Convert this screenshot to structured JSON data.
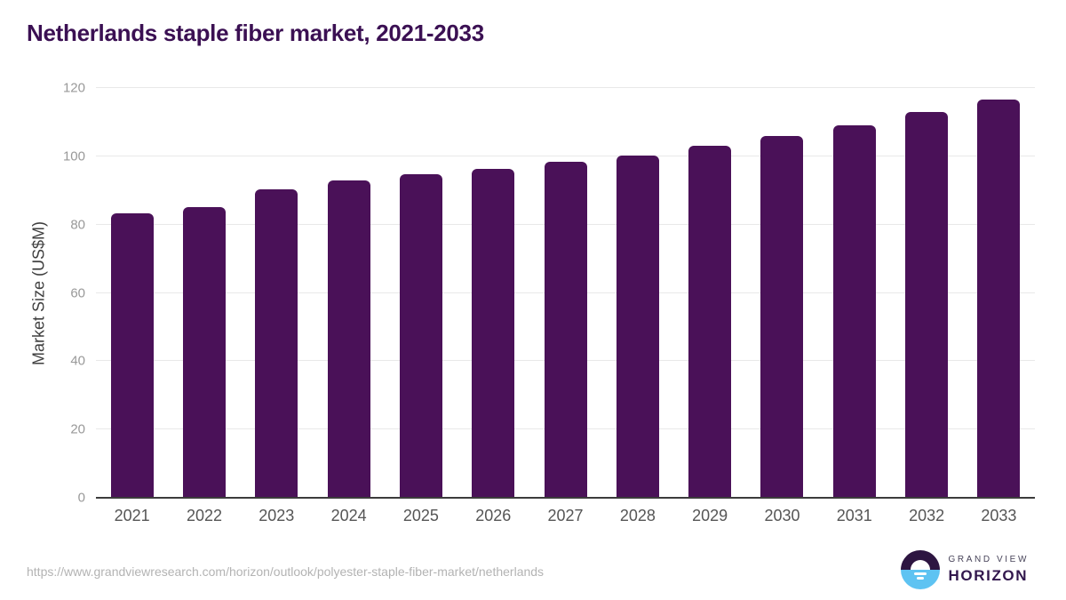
{
  "title": "Netherlands staple fiber market, 2021-2033",
  "chart_data": {
    "type": "bar",
    "categories": [
      "2021",
      "2022",
      "2023",
      "2024",
      "2025",
      "2026",
      "2027",
      "2028",
      "2029",
      "2030",
      "2031",
      "2032",
      "2033"
    ],
    "values": [
      83.2,
      85.1,
      90.2,
      93.0,
      94.8,
      96.4,
      98.3,
      100.3,
      103.0,
      105.9,
      109.1,
      113.1,
      116.5
    ],
    "title": "Netherlands staple fiber market, 2021-2033",
    "xlabel": "",
    "ylabel": "Market Size (US$M)",
    "ylim": [
      0,
      120
    ],
    "yticks": [
      0,
      20,
      40,
      60,
      80,
      100,
      120
    ],
    "grid": true,
    "legend": false,
    "bar_color": "#4a1158"
  },
  "colors": {
    "title_text": "#3b1053",
    "bar": "#4a1158",
    "gridline": "#e8e8e8",
    "axis_line": "#3c3c3c",
    "y_tick_text": "#999999",
    "x_tick_text": "#555555",
    "url_text": "#b3b3b3",
    "logo_purple": "#2d1541",
    "logo_blue": "#5ec3f2",
    "logo_top_text": "#474359",
    "logo_bottom_text": "#32174d"
  },
  "footer": {
    "source_url": "https://www.grandviewresearch.com/horizon/outlook/polyester-staple-fiber-market/netherlands",
    "logo": {
      "line1": "GRAND VIEW",
      "line2": "HORIZON",
      "mark": "sunrise-over-water-icon"
    }
  }
}
